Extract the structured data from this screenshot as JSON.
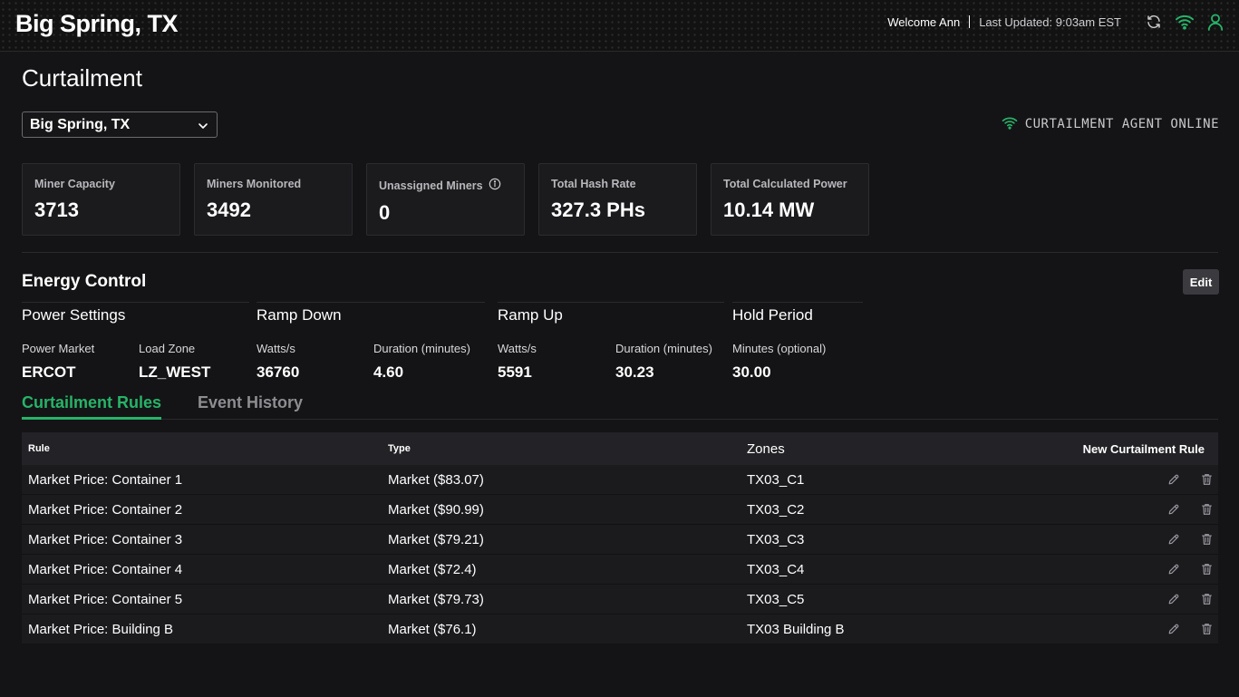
{
  "header": {
    "site_name": "Big Spring, TX",
    "welcome": "Welcome Ann",
    "last_updated": "Last Updated: 9:03am EST",
    "icons": [
      "refresh-icon",
      "wifi-icon",
      "user-icon"
    ],
    "accent_color": "#27b368"
  },
  "page": {
    "title": "Curtailment",
    "site_select_value": "Big Spring, TX",
    "agent_status": "CURTAILMENT AGENT ONLINE"
  },
  "stats": [
    {
      "label": "Miner Capacity",
      "value": "3713"
    },
    {
      "label": "Miners Monitored",
      "value": "3492"
    },
    {
      "label": "Unassigned Miners",
      "value": "0",
      "icon": "info-icon"
    },
    {
      "label": "Total Hash Rate",
      "value": "327.3 PHs"
    },
    {
      "label": "Total Calculated Power",
      "value": "10.14 MW"
    }
  ],
  "energy": {
    "title": "Energy Control",
    "edit_label": "Edit",
    "power_settings": {
      "title": "Power Settings",
      "market_label": "Power Market",
      "market_value": "ERCOT",
      "zone_label": "Load Zone",
      "zone_value": "LZ_WEST"
    },
    "ramp_down": {
      "title": "Ramp Down",
      "watts_label": "Watts/s",
      "watts_value": "36760",
      "duration_label": "Duration (minutes)",
      "duration_value": "4.60"
    },
    "ramp_up": {
      "title": "Ramp Up",
      "watts_label": "Watts/s",
      "watts_value": "5591",
      "duration_label": "Duration (minutes)",
      "duration_value": "30.23"
    },
    "hold_period": {
      "title": "Hold Period",
      "minutes_label": "Minutes (optional)",
      "minutes_value": "30.00"
    }
  },
  "tabs": [
    {
      "label": "Curtailment Rules",
      "active": true
    },
    {
      "label": "Event History",
      "active": false
    }
  ],
  "table": {
    "headers": {
      "rule": "Rule",
      "type": "Type",
      "zones": "Zones",
      "new_rule": "New Curtailment Rule"
    },
    "rows": [
      {
        "rule": "Market Price: Container 1",
        "type": "Market ($83.07)",
        "zones": "TX03_C1"
      },
      {
        "rule": "Market Price: Container 2",
        "type": "Market ($90.99)",
        "zones": "TX03_C2"
      },
      {
        "rule": "Market Price: Container 3",
        "type": "Market ($79.21)",
        "zones": "TX03_C3"
      },
      {
        "rule": "Market Price: Container 4",
        "type": "Market ($72.4)",
        "zones": "TX03_C4"
      },
      {
        "rule": "Market Price: Container 5",
        "type": "Market ($79.73)",
        "zones": "TX03_C5"
      },
      {
        "rule": "Market Price: Building B",
        "type": "Market ($76.1)",
        "zones": "TX03 Building B"
      }
    ]
  }
}
